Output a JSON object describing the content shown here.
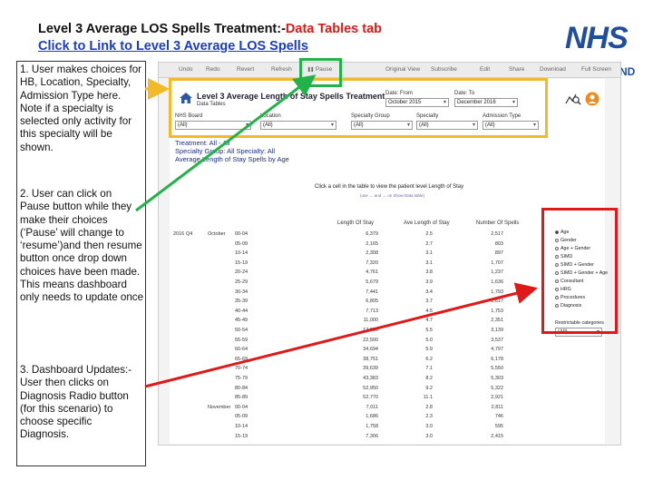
{
  "slide": {
    "title_black": "Level 3 Average LOS  Spells Treatment:-",
    "title_red": "Data Tables tab",
    "link": "Click to Link to Level 3 Average LOS Spells"
  },
  "logo": {
    "text": "NHS",
    "sub": "ND"
  },
  "notes": [
    "1. User makes choices for HB, Location, Specialty, Admission Type here. Note if a specialty is selected only activity for this specialty will be shown.",
    "2.  User can click on Pause button while they make their choices (‘Pause’ will change to ‘resume’)and then resume button once drop down choices have been made. This means dashboard only needs to update once",
    "3. Dashboard Updates:- User then clicks on Diagnosis Radio button (for this scenario) to choose specific Diagnosis."
  ],
  "toolbar": {
    "undo": "Undo",
    "redo": "Redo",
    "revert": "Revert",
    "refresh": "Refresh",
    "pause": "Pause",
    "original_view": "Original View",
    "subscribe": "Subscribe",
    "edit": "Edit",
    "share": "Share",
    "download": "Download",
    "full_screen": "Full Screen"
  },
  "dashboard": {
    "title": "Level 3 Average Length of Stay Spells Treatment",
    "subtitle": "Data Tables",
    "date_from_label": "Date: From",
    "date_from_value": "October 2015",
    "date_to_label": "Date: To",
    "date_to_value": "December 2016",
    "filters": [
      {
        "label": "NHS Board",
        "value": "(All)"
      },
      {
        "label": "Location",
        "value": "(All)"
      },
      {
        "label": "Specialty Group",
        "value": "(All)"
      },
      {
        "label": "Specialty",
        "value": "(All)"
      },
      {
        "label": "Admission Type",
        "value": "(All)"
      }
    ],
    "selection_line1": "Treatment: All - All",
    "selection_line2": "Specialty Group: All      Specialty: All",
    "selection_line3": "Average Length of Stay Spells by Age",
    "instruction": "Click a cell in the table to view the patient level Length of Stay",
    "instruction_sub": "(use ← and → on Show Data table)",
    "columns": {
      "los": "Length Of Stay",
      "ave": "Ave Length of Stay",
      "spells": "Number Of Spells"
    },
    "first_row_labels": {
      "year": "2016",
      "quarter": "Q4",
      "month": "October"
    },
    "second_month": "November",
    "rows": [
      {
        "age": "00-04",
        "los": "6,379",
        "ave": "2.5",
        "spells": "2,517"
      },
      {
        "age": "05-09",
        "los": "2,165",
        "ave": "2.7",
        "spells": "803"
      },
      {
        "age": "10-14",
        "los": "2,308",
        "ave": "3.1",
        "spells": "897"
      },
      {
        "age": "15-19",
        "los": "7,320",
        "ave": "3.1",
        "spells": "1,707"
      },
      {
        "age": "20-24",
        "los": "4,761",
        "ave": "3.8",
        "spells": "1,237"
      },
      {
        "age": "25-29",
        "los": "5,679",
        "ave": "3.9",
        "spells": "1,636"
      },
      {
        "age": "30-34",
        "los": "7,441",
        "ave": "3.4",
        "spells": "1,793"
      },
      {
        "age": "35-39",
        "los": "6,805",
        "ave": "3.7",
        "spells": "1,617"
      },
      {
        "age": "40-44",
        "los": "7,713",
        "ave": "4.5",
        "spells": "1,753"
      },
      {
        "age": "45-49",
        "los": "11,000",
        "ave": "4.7",
        "spells": "2,351"
      },
      {
        "age": "50-54",
        "los": "17,036",
        "ave": "5.5",
        "spells": "3,139"
      },
      {
        "age": "55-59",
        "los": "22,500",
        "ave": "5.0",
        "spells": "3,537"
      },
      {
        "age": "60-64",
        "los": "34,694",
        "ave": "5.9",
        "spells": "4,797"
      },
      {
        "age": "65-69",
        "los": "38,751",
        "ave": "6.2",
        "spells": "6,178"
      },
      {
        "age": "70-74",
        "los": "39,639",
        "ave": "7.1",
        "spells": "5,550"
      },
      {
        "age": "75-79",
        "los": "43,383",
        "ave": "8.2",
        "spells": "5,303"
      },
      {
        "age": "80-84",
        "los": "52,950",
        "ave": "9.2",
        "spells": "5,322"
      },
      {
        "age": "85-89",
        "los": "52,770",
        "ave": "11.1",
        "spells": "2,921"
      },
      {
        "age": "00-04",
        "los": "7,011",
        "ave": "2.8",
        "spells": "2,811"
      },
      {
        "age": "05-09",
        "los": "1,686",
        "ave": "2.3",
        "spells": "746"
      },
      {
        "age": "10-14",
        "los": "1,758",
        "ave": "3.0",
        "spells": "595"
      },
      {
        "age": "15-19",
        "los": "7,306",
        "ave": "3.0",
        "spells": "2,415"
      }
    ],
    "radio_options": [
      {
        "label": "Age",
        "selected": true
      },
      {
        "label": "Gender",
        "selected": false
      },
      {
        "label": "Age + Gender",
        "selected": false
      },
      {
        "label": "SIMD",
        "selected": false
      },
      {
        "label": "SIMD + Gender",
        "selected": false
      },
      {
        "label": "SIMD + Gender + Age",
        "selected": false
      },
      {
        "label": "Consultant",
        "selected": false
      },
      {
        "label": "HRG",
        "selected": false
      },
      {
        "label": "Procedures",
        "selected": false
      },
      {
        "label": "Diagnosis",
        "selected": false
      }
    ],
    "restrictable_label": "Restrictable categories",
    "restrictable_value": "(All)"
  },
  "colors": {
    "yellow": "#f2b928",
    "green": "#22b24a",
    "red": "#e01818",
    "nhs_blue": "#1f4e9c"
  }
}
